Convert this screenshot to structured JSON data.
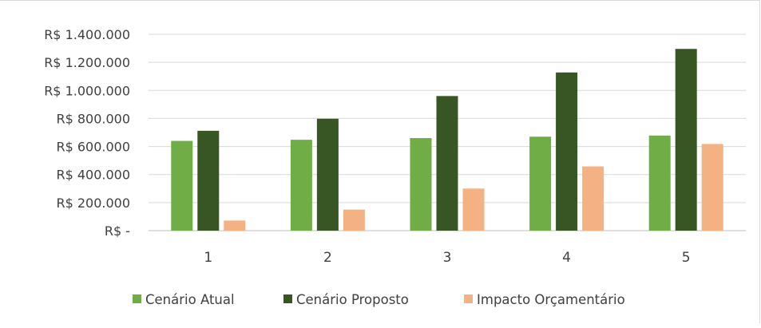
{
  "chart_data": {
    "type": "bar",
    "title": "",
    "xlabel": "",
    "ylabel": "",
    "categories": [
      "1",
      "2",
      "3",
      "4",
      "5"
    ],
    "series": [
      {
        "name": "Cenário Atual",
        "color": "#70ad47",
        "values": [
          640000,
          648000,
          660000,
          670000,
          678000
        ]
      },
      {
        "name": "Cenário Proposto",
        "color": "#375623",
        "values": [
          712000,
          798000,
          960000,
          1128000,
          1296000
        ]
      },
      {
        "name": "Impacto Orçamentário",
        "color": "#f4b183",
        "values": [
          72000,
          150000,
          300000,
          458000,
          618000
        ]
      }
    ],
    "ylim": [
      0,
      1400000
    ],
    "yticks": [
      0,
      200000,
      400000,
      600000,
      800000,
      1000000,
      1200000,
      1400000
    ],
    "ytick_labels": [
      "R$ -",
      "R$ 200.000",
      "R$ 400.000",
      "R$ 600.000",
      "R$ 800.000",
      "R$ 1.000.000",
      "R$ 1.200.000",
      "R$ 1.400.000"
    ],
    "grid": true,
    "legend_position": "bottom"
  }
}
